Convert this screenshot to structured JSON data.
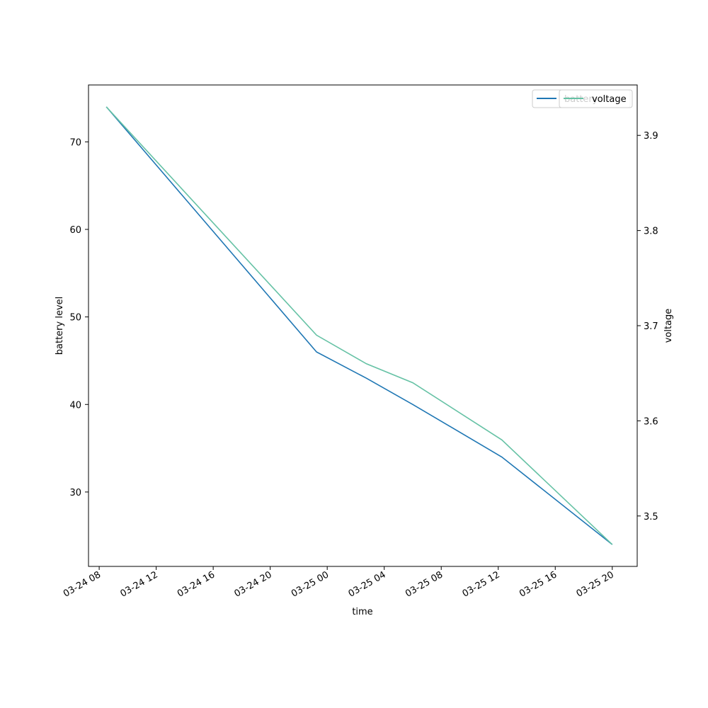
{
  "chart_data": {
    "type": "line",
    "xlabel": "time",
    "ylabel_left": "battery level",
    "ylabel_right": "voltage",
    "x": [
      "03-24 08:30",
      "03-24 23:15",
      "03-25 02:45",
      "03-25 06:00",
      "03-25 12:15",
      "03-25 20:00"
    ],
    "series": [
      {
        "name": "battery",
        "axis": "left",
        "color": "#1f77b4",
        "values": [
          74,
          46,
          43,
          40,
          34,
          24
        ]
      },
      {
        "name": "voltage",
        "axis": "right",
        "color": "#66c2a5",
        "values": [
          3.93,
          3.69,
          3.66,
          3.64,
          3.58,
          3.47
        ]
      }
    ],
    "xlim": [
      "03-24 07:15",
      "03-25 21:45"
    ],
    "ylim_left": [
      21.5,
      76.5
    ],
    "ylim_right": [
      3.447,
      3.953
    ],
    "xticks": [
      "03-24 08",
      "03-24 12",
      "03-24 16",
      "03-24 20",
      "03-25 00",
      "03-25 04",
      "03-25 08",
      "03-25 12",
      "03-25 16",
      "03-25 20"
    ],
    "yticks_left": [
      30,
      40,
      50,
      60,
      70
    ],
    "yticks_right": [
      3.5,
      3.6,
      3.7,
      3.8,
      3.9
    ],
    "legend_left": {
      "label": "battery",
      "placement": "top-right"
    },
    "legend_right": {
      "label": "voltage",
      "placement": "top-right"
    },
    "grid": false
  }
}
